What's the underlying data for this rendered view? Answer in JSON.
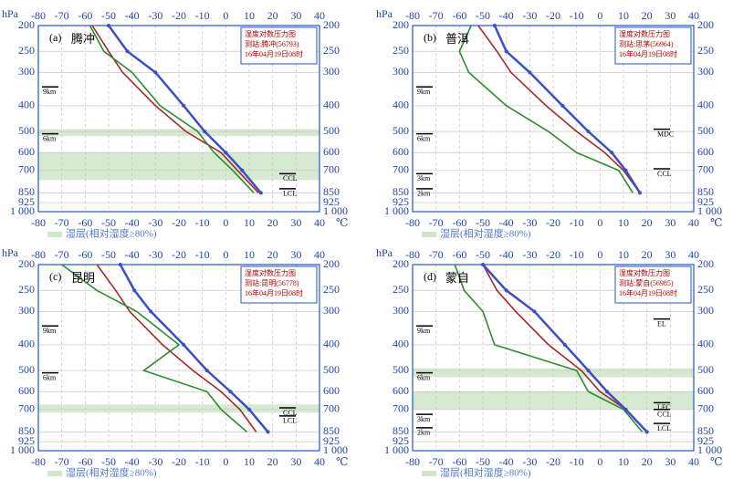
{
  "chart_data": [
    {
      "type": "line",
      "label": "(a)",
      "title": "腾冲",
      "info": [
        "湿度对数压力图",
        "测站:腾冲(56793)",
        "16年04月19日08时"
      ],
      "y_label": "hPa",
      "x_unit": "℃",
      "legend": "湿层(相对湿度≥80%)",
      "xlim": [
        -80,
        40
      ],
      "xticks": [
        -80,
        -70,
        -60,
        -50,
        -40,
        -30,
        -20,
        -10,
        0,
        10,
        20,
        30,
        40
      ],
      "ylim": [
        1000,
        200
      ],
      "log_y": true,
      "yticks": [
        200,
        250,
        300,
        400,
        500,
        600,
        700,
        850,
        925,
        {
          "value": 1000,
          "label": "1 000"
        }
      ],
      "levels": [
        200,
        250,
        300,
        400,
        500,
        600,
        700,
        850
      ],
      "series": [
        {
          "color": "#a52a2a",
          "values": [
            -57,
            -50,
            -44,
            -30,
            -17,
            -2,
            5,
            14
          ]
        },
        {
          "color": "#2e8b2e",
          "values": [
            -58,
            -52,
            -40,
            -28,
            -12,
            -5,
            3,
            12
          ]
        },
        {
          "color": "#3b4fc4",
          "values": [
            -50,
            -42,
            -30,
            -18,
            -9,
            0,
            7,
            15
          ]
        }
      ],
      "wet_layers": [
        [
          520,
          490
        ],
        [
          760,
          600
        ]
      ],
      "marked_levels": [
        {
          "text": "9km",
          "pressure": 340
        },
        {
          "text": "6km",
          "pressure": 510
        },
        {
          "text": "CCL",
          "pressure": 720
        },
        {
          "text": "LCL",
          "pressure": 820
        }
      ]
    },
    {
      "type": "line",
      "label": "(b)",
      "title": "普洱",
      "info": [
        "湿度对数压力图",
        "测站:思茅(56964)",
        "16年04月19日08时"
      ],
      "y_label": "hPa",
      "x_unit": "℃",
      "legend": "湿层(相对湿度≥80%)",
      "xlim": [
        -80,
        40
      ],
      "xticks": [
        -80,
        -70,
        -60,
        -50,
        -40,
        -30,
        -20,
        -10,
        0,
        10,
        20,
        30,
        40
      ],
      "ylim": [
        1000,
        200
      ],
      "log_y": true,
      "yticks": [
        200,
        250,
        300,
        400,
        500,
        600,
        700,
        850,
        925,
        {
          "value": 1000,
          "label": "1 000"
        }
      ],
      "levels": [
        200,
        250,
        300,
        400,
        500,
        600,
        700,
        850
      ],
      "series": [
        {
          "color": "#a52a2a",
          "values": [
            -52,
            -44,
            -38,
            -23,
            -10,
            2,
            10,
            17
          ]
        },
        {
          "color": "#2e8b2e",
          "values": [
            -55,
            -60,
            -56,
            -40,
            -22,
            -10,
            8,
            14
          ]
        },
        {
          "color": "#3b4fc4",
          "values": [
            -45,
            -40,
            -30,
            -16,
            -5,
            5,
            11,
            17
          ]
        }
      ],
      "wet_layers": [],
      "marked_levels": [
        {
          "text": "9km",
          "pressure": 340
        },
        {
          "text": "6km",
          "pressure": 510
        },
        {
          "text": "MDC",
          "pressure": 490
        },
        {
          "text": "CCL",
          "pressure": 690
        },
        {
          "text": "3km",
          "pressure": 720
        },
        {
          "text": "2km",
          "pressure": 820
        }
      ]
    },
    {
      "type": "line",
      "label": "(c)",
      "title": "昆明",
      "info": [
        "湿度对数压力图",
        "测站:昆明(56778)",
        "16年04月19日08时"
      ],
      "y_label": "hPa",
      "x_unit": "℃",
      "legend": "湿层(相对湿度≥80%)",
      "xlim": [
        -80,
        40
      ],
      "xticks": [
        -80,
        -70,
        -60,
        -50,
        -40,
        -30,
        -20,
        -10,
        0,
        10,
        20,
        30,
        40
      ],
      "ylim": [
        1000,
        200
      ],
      "log_y": true,
      "yticks": [
        200,
        250,
        300,
        400,
        500,
        600,
        700,
        850,
        925,
        {
          "value": 1000,
          "label": "1 000"
        }
      ],
      "levels": [
        200,
        250,
        300,
        400,
        500,
        600,
        700,
        850
      ],
      "series": [
        {
          "color": "#a52a2a",
          "values": [
            -55,
            -47,
            -41,
            -27,
            -14,
            -2,
            6,
            13
          ]
        },
        {
          "color": "#2e8b2e",
          "values": [
            -70,
            -55,
            -38,
            -20,
            -35,
            -8,
            -2,
            9
          ]
        },
        {
          "color": "#3b4fc4",
          "values": [
            -45,
            -39,
            -32,
            -18,
            -8,
            2,
            10,
            18
          ]
        }
      ],
      "wet_layers": [
        [
          720,
          670
        ]
      ],
      "marked_levels": [
        {
          "text": "9km",
          "pressure": 340
        },
        {
          "text": "6km",
          "pressure": 510
        },
        {
          "text": "CCL",
          "pressure": 690
        },
        {
          "text": "LCL",
          "pressure": 740
        }
      ]
    },
    {
      "type": "line",
      "label": "(d)",
      "title": "蒙自",
      "info": [
        "湿度对数压力图",
        "测站:蒙自(56985)",
        "16年04月19日08时"
      ],
      "y_label": "hPa",
      "x_unit": "℃",
      "legend": "湿层(相对湿度≥80%)",
      "xlim": [
        -80,
        40
      ],
      "xticks": [
        -80,
        -70,
        -60,
        -50,
        -40,
        -30,
        -20,
        -10,
        0,
        10,
        20,
        30,
        40
      ],
      "ylim": [
        1000,
        200
      ],
      "log_y": true,
      "yticks": [
        200,
        250,
        300,
        400,
        500,
        600,
        700,
        850,
        925,
        {
          "value": 1000,
          "label": "1 000"
        }
      ],
      "levels": [
        200,
        250,
        300,
        400,
        500,
        600,
        700,
        850
      ],
      "series": [
        {
          "color": "#a52a2a",
          "values": [
            -50,
            -44,
            -36,
            -22,
            -8,
            0,
            11,
            20
          ]
        },
        {
          "color": "#2e8b2e",
          "values": [
            -62,
            -58,
            -50,
            -45,
            -10,
            -5,
            10,
            18
          ]
        },
        {
          "color": "#3b4fc4",
          "values": [
            -50,
            -40,
            -28,
            -15,
            -5,
            3,
            11,
            20
          ]
        }
      ],
      "wet_layers": [
        [
          530,
          490
        ],
        [
          700,
          600
        ]
      ],
      "marked_levels": [
        {
          "text": "EL",
          "pressure": 320
        },
        {
          "text": "9km",
          "pressure": 340
        },
        {
          "text": "6km",
          "pressure": 510
        },
        {
          "text": "LFC",
          "pressure": 660
        },
        {
          "text": "CCL",
          "pressure": 700
        },
        {
          "text": "3km",
          "pressure": 730
        },
        {
          "text": "LCL",
          "pressure": 790
        },
        {
          "text": "2km",
          "pressure": 820
        }
      ]
    }
  ]
}
